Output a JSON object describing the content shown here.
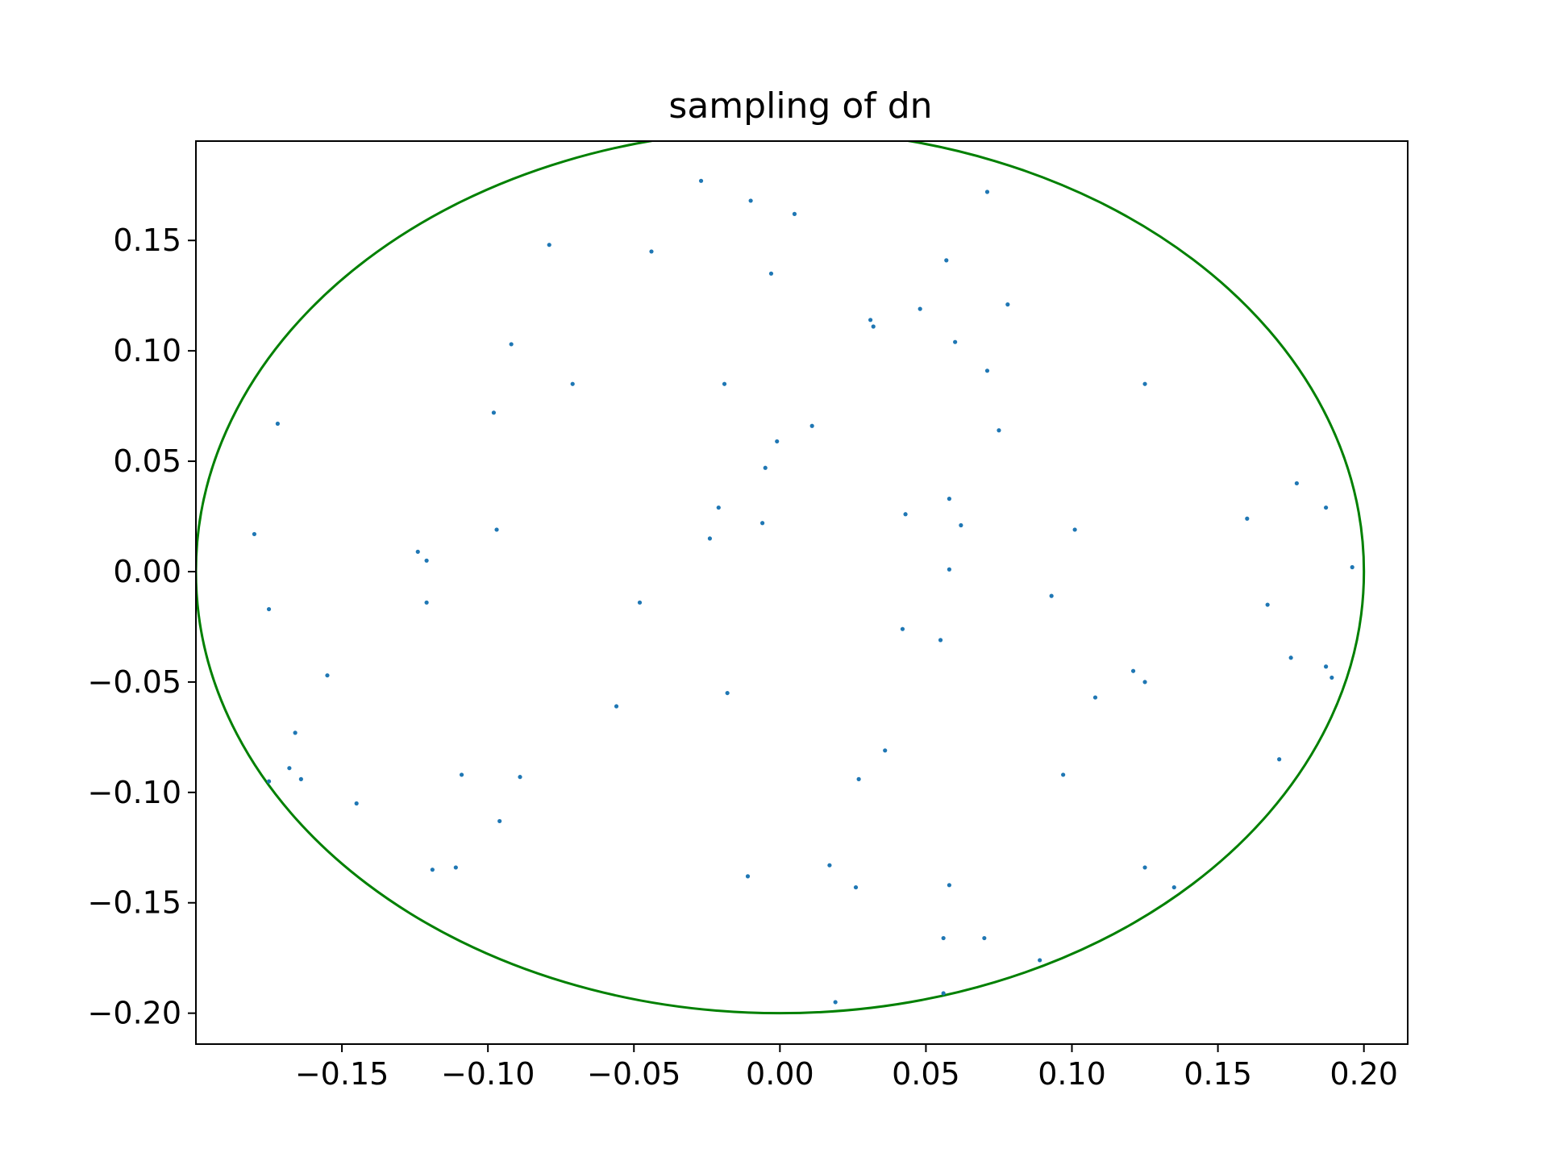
{
  "chart_data": {
    "type": "scatter",
    "title": "sampling of dn",
    "xlabel": "",
    "ylabel": "",
    "xlim": [
      -0.2,
      0.215
    ],
    "ylim": [
      -0.214,
      0.195
    ],
    "xticks": [
      -0.15,
      -0.1,
      -0.05,
      0.0,
      0.05,
      0.1,
      0.15,
      0.2
    ],
    "xtick_labels": [
      "−0.15",
      "−0.10",
      "−0.05",
      "0.00",
      "0.05",
      "0.10",
      "0.15",
      "0.20"
    ],
    "yticks": [
      0.15,
      0.1,
      0.05,
      0.0,
      -0.05,
      -0.1,
      -0.15,
      -0.2
    ],
    "ytick_labels": [
      "0.15",
      "0.10",
      "0.05",
      "0.00",
      "−0.05",
      "−0.10",
      "−0.15",
      "−0.20"
    ],
    "grid": false,
    "circle": {
      "center": [
        0,
        0
      ],
      "radius": 0.2,
      "color": "#008000"
    },
    "series": [
      {
        "color": "#1f77b4",
        "points": [
          [
            -0.027,
            0.177
          ],
          [
            -0.01,
            0.168
          ],
          [
            0.005,
            0.162
          ],
          [
            0.071,
            0.172
          ],
          [
            -0.079,
            0.148
          ],
          [
            -0.044,
            0.145
          ],
          [
            -0.003,
            0.135
          ],
          [
            0.057,
            0.141
          ],
          [
            0.048,
            0.119
          ],
          [
            0.078,
            0.121
          ],
          [
            0.031,
            0.114
          ],
          [
            0.032,
            0.111
          ],
          [
            -0.092,
            0.103
          ],
          [
            0.06,
            0.104
          ],
          [
            0.071,
            0.091
          ],
          [
            -0.071,
            0.085
          ],
          [
            -0.019,
            0.085
          ],
          [
            0.125,
            0.085
          ],
          [
            -0.098,
            0.072
          ],
          [
            -0.172,
            0.067
          ],
          [
            0.011,
            0.066
          ],
          [
            0.075,
            0.064
          ],
          [
            -0.001,
            0.059
          ],
          [
            -0.005,
            0.047
          ],
          [
            0.177,
            0.04
          ],
          [
            0.058,
            0.033
          ],
          [
            0.187,
            0.029
          ],
          [
            -0.021,
            0.029
          ],
          [
            0.043,
            0.026
          ],
          [
            0.16,
            0.024
          ],
          [
            -0.006,
            0.022
          ],
          [
            0.062,
            0.021
          ],
          [
            0.101,
            0.019
          ],
          [
            -0.097,
            0.019
          ],
          [
            -0.18,
            0.017
          ],
          [
            -0.024,
            0.015
          ],
          [
            -0.124,
            0.009
          ],
          [
            -0.121,
            0.005
          ],
          [
            0.196,
            0.002
          ],
          [
            0.058,
            0.001
          ],
          [
            0.093,
            -0.011
          ],
          [
            -0.048,
            -0.014
          ],
          [
            -0.121,
            -0.014
          ],
          [
            0.167,
            -0.015
          ],
          [
            -0.175,
            -0.017
          ],
          [
            0.042,
            -0.026
          ],
          [
            0.055,
            -0.031
          ],
          [
            0.175,
            -0.039
          ],
          [
            0.187,
            -0.043
          ],
          [
            0.121,
            -0.045
          ],
          [
            -0.155,
            -0.047
          ],
          [
            0.189,
            -0.048
          ],
          [
            0.125,
            -0.05
          ],
          [
            -0.018,
            -0.055
          ],
          [
            0.108,
            -0.057
          ],
          [
            -0.056,
            -0.061
          ],
          [
            -0.166,
            -0.073
          ],
          [
            0.036,
            -0.081
          ],
          [
            0.171,
            -0.085
          ],
          [
            -0.168,
            -0.089
          ],
          [
            -0.109,
            -0.092
          ],
          [
            0.097,
            -0.092
          ],
          [
            -0.089,
            -0.093
          ],
          [
            0.027,
            -0.094
          ],
          [
            -0.164,
            -0.094
          ],
          [
            -0.175,
            -0.095
          ],
          [
            -0.145,
            -0.105
          ],
          [
            -0.096,
            -0.113
          ],
          [
            0.017,
            -0.133
          ],
          [
            0.125,
            -0.134
          ],
          [
            -0.111,
            -0.134
          ],
          [
            -0.119,
            -0.135
          ],
          [
            -0.011,
            -0.138
          ],
          [
            0.058,
            -0.142
          ],
          [
            0.026,
            -0.143
          ],
          [
            0.135,
            -0.143
          ],
          [
            0.056,
            -0.166
          ],
          [
            0.07,
            -0.166
          ],
          [
            0.089,
            -0.176
          ],
          [
            0.056,
            -0.191
          ],
          [
            0.019,
            -0.195
          ]
        ]
      }
    ]
  }
}
